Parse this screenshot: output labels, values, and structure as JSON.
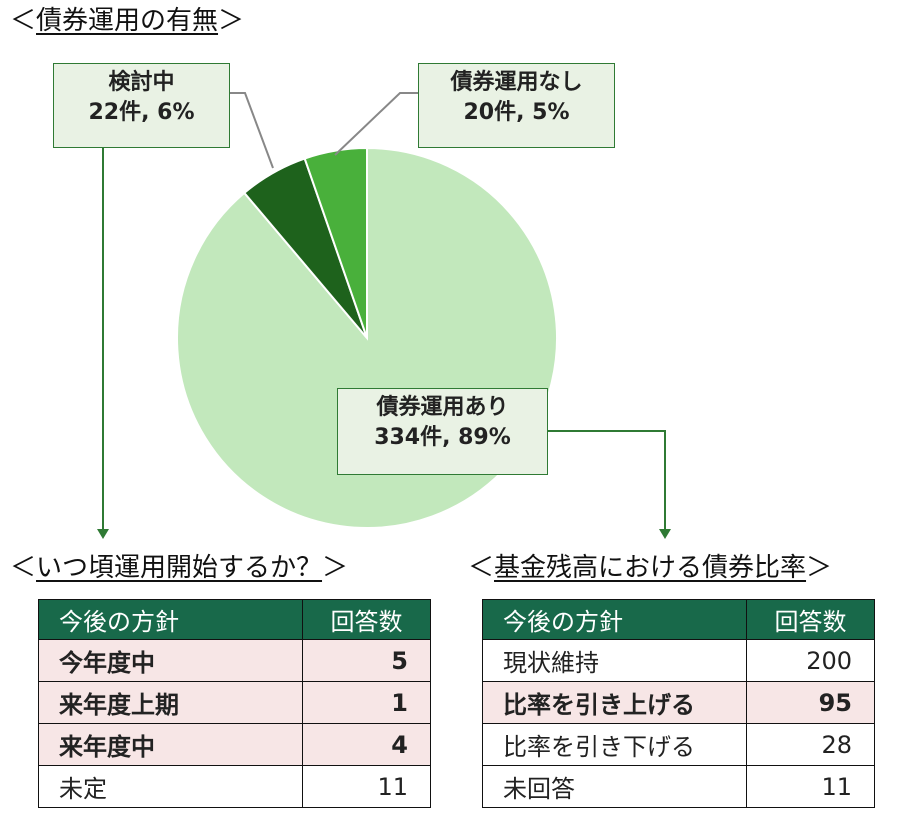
{
  "titles": {
    "bond_status": "債券運用の有無",
    "start_timing": "いつ頃運用開始するか？",
    "bond_ratio": "基金残高における債券比率"
  },
  "brackets": {
    "open": "＜",
    "close": "＞"
  },
  "chart_data": {
    "type": "pie",
    "title": "債券運用の有無",
    "slices": [
      {
        "label": "債券運用あり",
        "count_label": "334件, 89%",
        "value": 334,
        "percent": 89,
        "color": "#c2e8bc"
      },
      {
        "label": "検討中",
        "count_label": "22件, 6%",
        "value": 22,
        "percent": 6,
        "color": "#1e621c"
      },
      {
        "label": "債券運用なし",
        "count_label": "20件, 5%",
        "value": 20,
        "percent": 5,
        "color": "#49b03b"
      }
    ]
  },
  "tables": {
    "start_timing": {
      "headers": [
        "今後の方針",
        "回答数"
      ],
      "rows": [
        {
          "label": "今年度中",
          "value": "5",
          "highlight": true
        },
        {
          "label": "来年度上期",
          "value": "1",
          "highlight": true
        },
        {
          "label": "来年度中",
          "value": "4",
          "highlight": true
        },
        {
          "label": "未定",
          "value": "11",
          "highlight": false
        }
      ]
    },
    "bond_ratio": {
      "headers": [
        "今後の方針",
        "回答数"
      ],
      "rows": [
        {
          "label": "現状維持",
          "value": "200",
          "highlight": false
        },
        {
          "label": "比率を引き上げる",
          "value": "95",
          "highlight": true
        },
        {
          "label": "比率を引き下げる",
          "value": "28",
          "highlight": false
        },
        {
          "label": "未回答",
          "value": "11",
          "highlight": false
        }
      ]
    }
  },
  "colors": {
    "header_bg": "#18694a",
    "highlight_row": "#f7e6e6",
    "callout_bg": "#e9f2e4",
    "arrow": "#2f7a34"
  }
}
